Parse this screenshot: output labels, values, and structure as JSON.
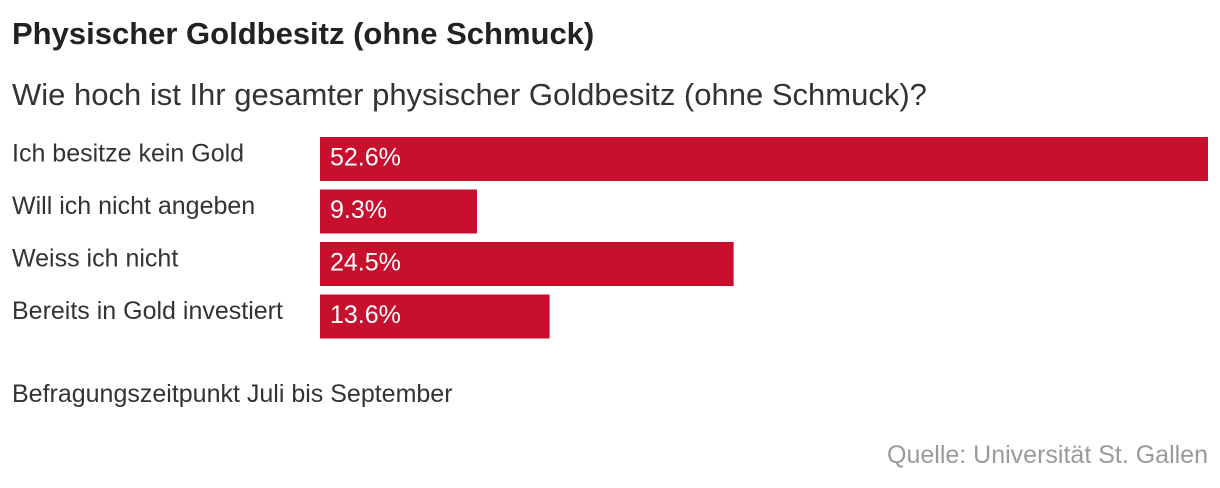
{
  "title": "Physischer Goldbesitz (ohne Schmuck)",
  "subtitle": "Wie hoch ist Ihr gesamter physischer Goldbesitz (ohne Schmuck)?",
  "note": "Befragungszeitpunkt Juli bis September",
  "source": "Quelle: Universität St. Gallen",
  "colors": {
    "bar": "#c8102e",
    "bar_label": "#ffffff",
    "category_label": "#333333"
  },
  "chart_data": {
    "type": "bar",
    "orientation": "horizontal",
    "categories": [
      "Ich besitze kein Gold",
      "Will ich nicht angeben",
      "Weiss ich nicht",
      "Bereits in Gold investiert"
    ],
    "values": [
      52.6,
      9.3,
      24.5,
      13.6
    ],
    "value_labels": [
      "52.6%",
      "9.3%",
      "24.5%",
      "13.6%"
    ],
    "unit": "%",
    "xlim": [
      0,
      52.6
    ],
    "grid": false,
    "legend": "none"
  }
}
